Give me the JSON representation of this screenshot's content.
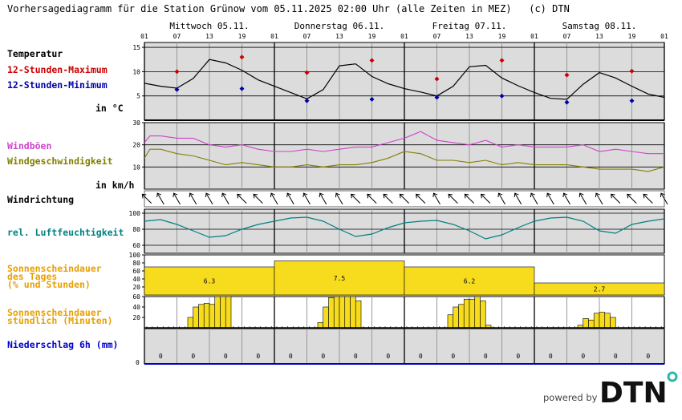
{
  "title": "Vorhersagediagramm für die Station Grünow vom 05.11.2025 02:00 Uhr (alle Zeiten in MEZ)   (c) DTN",
  "days": [
    "Mittwoch 05.11.",
    "Donnerstag 06.11.",
    "Freitag 07.11.",
    "Samstag 08.11."
  ],
  "hour_labels": [
    "01",
    "07",
    "13",
    "19",
    "01",
    "07",
    "13",
    "19",
    "01",
    "07",
    "13",
    "19",
    "01",
    "07",
    "13",
    "19",
    "01"
  ],
  "labels": {
    "temperature": "Temperatur",
    "max12": "12-Stunden-Maximum",
    "min12": "12-Stunden-Minimum",
    "temp_unit": "in °C",
    "gusts": "Windböen",
    "wind_speed": "Windgeschwindigkeit",
    "wind_unit": "in km/h",
    "wind_direction": "Windrichtung",
    "humidity": "rel. Luftfeuchtigkeit",
    "sun_daily_1": "Sonnenscheindauer",
    "sun_daily_2": "des Tages",
    "sun_daily_3": "(% und Stunden)",
    "sun_hourly_1": "Sonnenscheindauer",
    "sun_hourly_2": "stündlich (Minuten)",
    "precip": "Niederschlag 6h (mm)"
  },
  "colors": {
    "temperature": "#000000",
    "max12": "#cc0000",
    "min12": "#0000aa",
    "gusts": "#cc44cc",
    "wind_speed": "#808000",
    "humidity": "#008080",
    "sunshine": "#f7dc1e",
    "sun_label": "#e8a000",
    "precip": "#0000cc",
    "panel_bg": "#dcdcdc"
  },
  "powered_by": "powered by",
  "logo_text": "DTN",
  "chart_data": [
    {
      "type": "line",
      "name": "temperature",
      "x_hours": [
        0,
        3,
        6,
        9,
        12,
        15,
        18,
        21,
        24,
        27,
        30,
        33,
        36,
        39,
        42,
        45,
        48,
        51,
        54,
        57,
        60,
        63,
        66,
        69,
        72,
        75,
        78,
        81,
        84,
        87,
        90,
        93,
        96
      ],
      "y": [
        7.6,
        7.0,
        6.6,
        8.6,
        12.5,
        11.8,
        10.3,
        8.3,
        7.0,
        5.7,
        4.4,
        6.3,
        11.2,
        11.6,
        9.0,
        7.5,
        6.5,
        5.8,
        5.0,
        7.0,
        11.0,
        11.3,
        8.7,
        7.1,
        5.7,
        4.5,
        4.3,
        7.4,
        9.8,
        8.7,
        7.0,
        5.4,
        4.7
      ],
      "max12": [
        {
          "x": 6,
          "y": 10.0
        },
        {
          "x": 18,
          "y": 13.0
        },
        {
          "x": 30,
          "y": 9.8
        },
        {
          "x": 42,
          "y": 12.3
        },
        {
          "x": 54,
          "y": 8.5
        },
        {
          "x": 66,
          "y": 12.3
        },
        {
          "x": 78,
          "y": 9.3
        },
        {
          "x": 90,
          "y": 10.1
        }
      ],
      "min12": [
        {
          "x": 6,
          "y": 6.3
        },
        {
          "x": 18,
          "y": 6.5
        },
        {
          "x": 30,
          "y": 4.0
        },
        {
          "x": 42,
          "y": 4.3
        },
        {
          "x": 54,
          "y": 4.7
        },
        {
          "x": 66,
          "y": 5.0
        },
        {
          "x": 78,
          "y": 3.7
        },
        {
          "x": 90,
          "y": 4.0
        }
      ],
      "ylim": [
        0,
        16
      ],
      "yticks": [
        5,
        10,
        15
      ]
    },
    {
      "type": "line",
      "name": "wind",
      "x_hours": [
        0,
        1,
        3,
        6,
        9,
        12,
        15,
        18,
        21,
        24,
        27,
        30,
        33,
        36,
        39,
        42,
        45,
        48,
        51,
        54,
        57,
        60,
        63,
        66,
        69,
        72,
        75,
        78,
        81,
        84,
        87,
        90,
        93,
        96
      ],
      "gusts": [
        21,
        24,
        24,
        23,
        23,
        20,
        19,
        20,
        18,
        17,
        17,
        18,
        17,
        18,
        19,
        19,
        21,
        23,
        26,
        22,
        21,
        20,
        22,
        19,
        20,
        19,
        19,
        19,
        20,
        17,
        18,
        17,
        16,
        16
      ],
      "wind_speed": [
        14,
        18,
        18,
        16,
        15,
        13,
        11,
        12,
        11,
        10,
        10,
        11,
        10,
        11,
        11,
        12,
        14,
        17,
        16,
        13,
        13,
        12,
        13,
        11,
        12,
        11,
        11,
        11,
        10,
        9,
        9,
        9,
        8,
        10
      ],
      "ylim": [
        0,
        30
      ],
      "yticks": [
        10,
        20,
        30
      ]
    },
    {
      "type": "line",
      "name": "wind_direction_deg",
      "x_hours": [
        0,
        3,
        6,
        9,
        12,
        15,
        18,
        21,
        24,
        27,
        30,
        33,
        36,
        39,
        42,
        45,
        48,
        51,
        54,
        57,
        60,
        63,
        66,
        69,
        72,
        75,
        78,
        81,
        84,
        87,
        90,
        93,
        96
      ],
      "direction": [
        315,
        330,
        330,
        330,
        330,
        330,
        315,
        315,
        330,
        330,
        330,
        330,
        330,
        315,
        315,
        315,
        315,
        315,
        330,
        315,
        315,
        315,
        330,
        330,
        330,
        330,
        330,
        330,
        330,
        315,
        315,
        315,
        330
      ]
    },
    {
      "type": "line",
      "name": "humidity",
      "x_hours": [
        0,
        3,
        6,
        9,
        12,
        15,
        18,
        21,
        24,
        27,
        30,
        33,
        36,
        39,
        42,
        45,
        48,
        51,
        54,
        57,
        60,
        63,
        66,
        69,
        72,
        75,
        78,
        81,
        84,
        87,
        90,
        93,
        96
      ],
      "y": [
        90,
        92,
        86,
        78,
        70,
        72,
        80,
        86,
        90,
        94,
        95,
        90,
        80,
        71,
        74,
        82,
        88,
        90,
        91,
        86,
        78,
        68,
        73,
        82,
        90,
        94,
        95,
        90,
        78,
        75,
        86,
        90,
        93
      ],
      "ylim": [
        50,
        105
      ],
      "yticks": [
        60,
        80,
        100
      ]
    },
    {
      "type": "bar",
      "name": "sunshine_daily",
      "categories": [
        "05.11.",
        "06.11.",
        "07.11.",
        "08.11."
      ],
      "percent": [
        70,
        85,
        70,
        30
      ],
      "hours": [
        "6.3",
        "7.5",
        "6.2",
        "2.7"
      ],
      "ylim": [
        0,
        100
      ],
      "yticks": [
        20,
        40,
        60,
        80,
        100
      ]
    },
    {
      "type": "bar",
      "name": "sunshine_hourly_minutes",
      "x_hours": [
        8,
        9,
        10,
        11,
        12,
        13,
        14,
        15,
        32,
        33,
        34,
        35,
        36,
        37,
        38,
        39,
        56,
        57,
        58,
        59,
        60,
        61,
        62,
        63,
        80,
        81,
        82,
        83,
        84,
        85,
        86
      ],
      "minutes": [
        20,
        40,
        45,
        47,
        45,
        60,
        60,
        60,
        10,
        40,
        58,
        60,
        60,
        60,
        60,
        52,
        25,
        40,
        45,
        55,
        55,
        60,
        52,
        5,
        5,
        18,
        15,
        28,
        30,
        28,
        20
      ],
      "ylim": [
        0,
        60
      ],
      "yticks": [
        20,
        40,
        60
      ]
    },
    {
      "type": "bar",
      "name": "precipitation_6h",
      "x_hours": [
        3,
        9,
        15,
        21,
        27,
        33,
        39,
        45,
        51,
        57,
        63,
        69,
        75,
        81,
        87,
        93
      ],
      "values": [
        "0",
        "0",
        "0",
        "0",
        "0",
        "0",
        "0",
        "0",
        "0",
        "0",
        "0",
        "0",
        "0",
        "0",
        "0",
        "0"
      ]
    }
  ]
}
